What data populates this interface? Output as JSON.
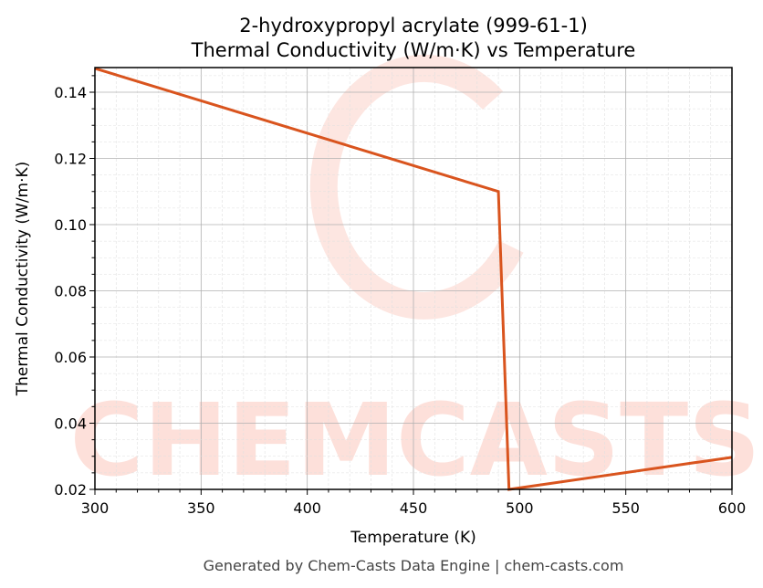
{
  "title_line1": "2-hydroxypropyl acrylate (999-61-1)",
  "title_line2": "Thermal Conductivity (W/m·K) vs Temperature",
  "footer": "Generated by Chem-Casts Data Engine | chem-casts.com",
  "watermark": "CHEMCASTS",
  "colors": {
    "line": "#d9541e",
    "watermark": "#fde0da",
    "grid": "#b0b0b0"
  },
  "chart_data": {
    "type": "line",
    "title": "2-hydroxypropyl acrylate (999-61-1) Thermal Conductivity (W/m·K) vs Temperature",
    "xlabel": "Temperature (K)",
    "ylabel": "Thermal Conductivity (W/m·K)",
    "xlim": [
      300,
      600
    ],
    "ylim": [
      0.02,
      0.147
    ],
    "xticks": [
      "300",
      "350",
      "400",
      "450",
      "500",
      "550",
      "600"
    ],
    "yticks": [
      "0.02",
      "0.04",
      "0.06",
      "0.08",
      "0.10",
      "0.12",
      "0.14"
    ],
    "grid": true,
    "series": [
      {
        "name": "Thermal Conductivity",
        "x": [
          300,
          490,
          495,
          600
        ],
        "y": [
          0.1472,
          0.11,
          0.02,
          0.0297
        ]
      }
    ]
  }
}
